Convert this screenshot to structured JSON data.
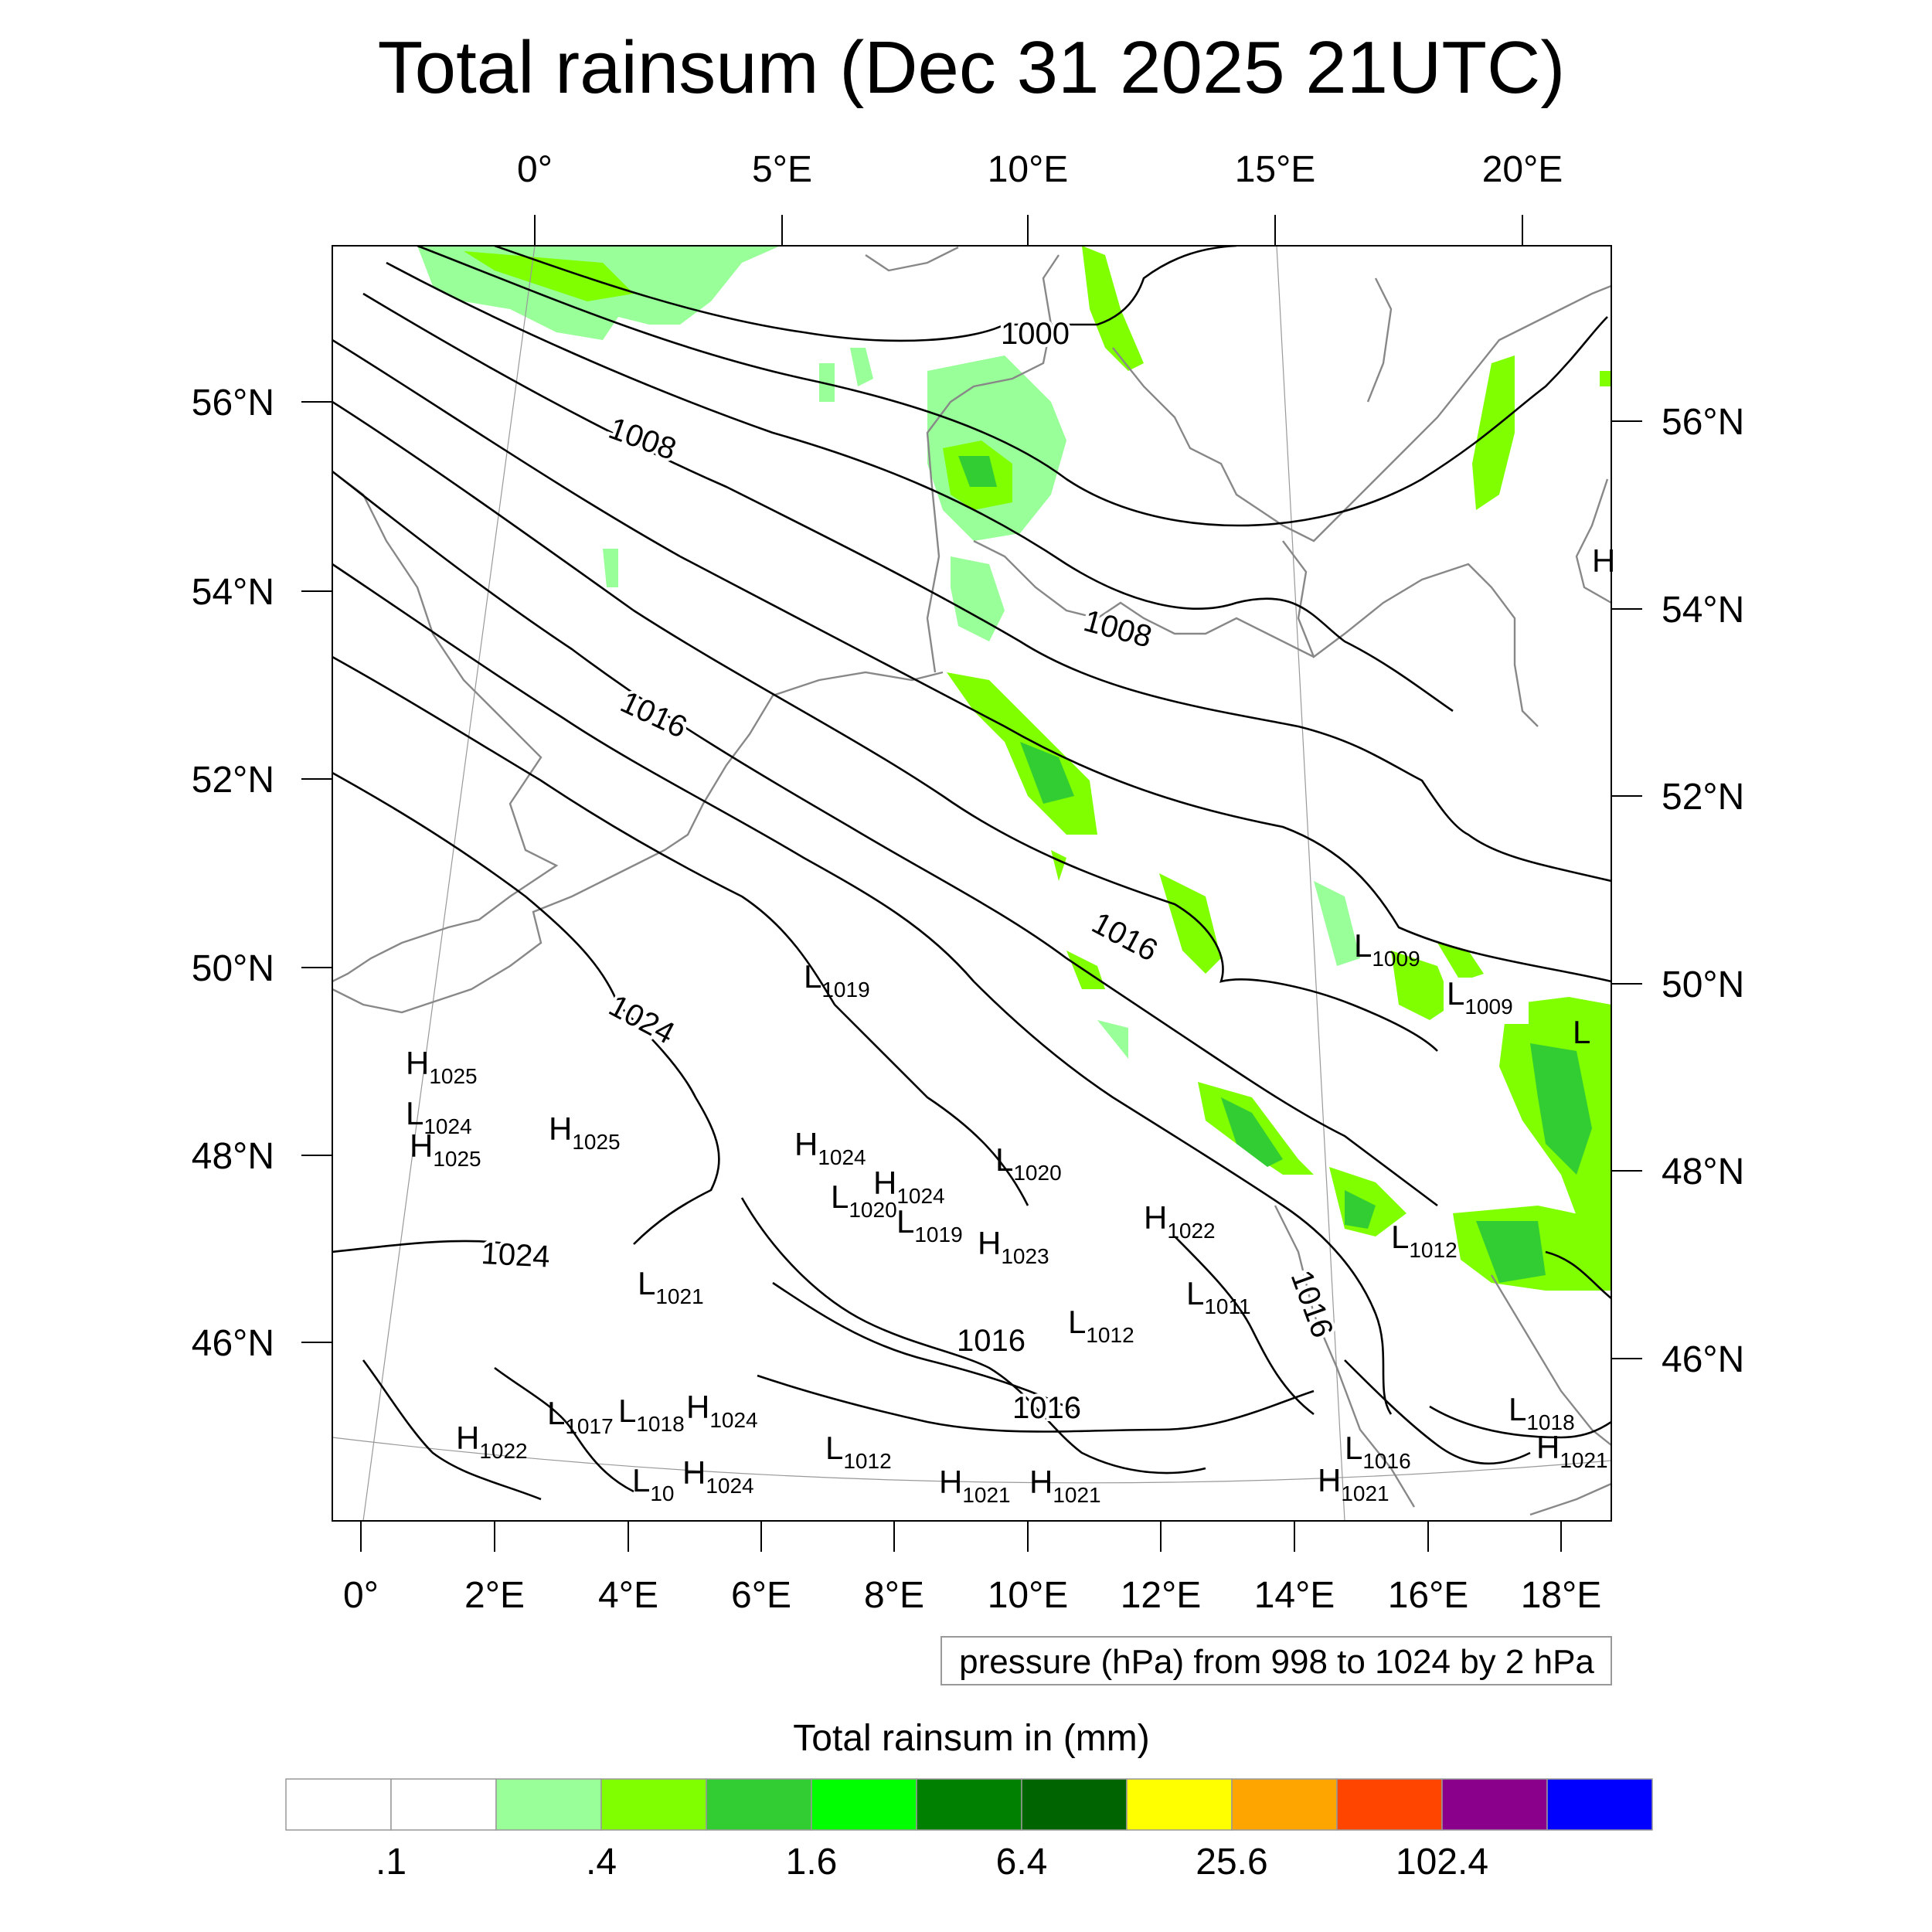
{
  "title": "Total rainsum (Dec 31 2025 21UTC)",
  "top_lon_ticks": [
    "0°",
    "5°E",
    "10°E",
    "15°E",
    "20°E"
  ],
  "bottom_lon_ticks": [
    "0°",
    "2°E",
    "4°E",
    "6°E",
    "8°E",
    "10°E",
    "12°E",
    "14°E",
    "16°E",
    "18°E"
  ],
  "left_lat_ticks": [
    "56°N",
    "54°N",
    "52°N",
    "50°N",
    "48°N",
    "46°N"
  ],
  "right_lat_ticks": [
    "56°N",
    "54°N",
    "52°N",
    "50°N",
    "48°N",
    "46°N"
  ],
  "contour_info": "pressure (hPa) from 998 to 1024 by 2 hPa",
  "colorbar": {
    "title": "Total rainsum in (mm)",
    "colors": [
      "#ffffff",
      "#ffffff",
      "#99ff99",
      "#80ff00",
      "#32cd32",
      "#00ff00",
      "#008000",
      "#006400",
      "#ffff00",
      "#ffa500",
      "#ff4500",
      "#8b008b",
      "#0000ff"
    ],
    "labels": [
      ".1",
      ".4",
      "1.6",
      "6.4",
      "25.6",
      "102.4"
    ]
  },
  "isobar_labels": [
    {
      "text": "1000"
    },
    {
      "text": "1008"
    },
    {
      "text": "1008"
    },
    {
      "text": "1016"
    },
    {
      "text": "1016"
    },
    {
      "text": "1024"
    },
    {
      "text": "1024"
    },
    {
      "text": "1016"
    },
    {
      "text": "1016"
    },
    {
      "text": "1016"
    }
  ],
  "pressure_centers": [
    {
      "type": "H",
      "value": "1025"
    },
    {
      "type": "L",
      "value": "1024"
    },
    {
      "type": "H",
      "value": "1025"
    },
    {
      "type": "H",
      "value": "1025"
    },
    {
      "type": "L",
      "value": "1019"
    },
    {
      "type": "H",
      "value": "1024"
    },
    {
      "type": "H",
      "value": "1024"
    },
    {
      "type": "L",
      "value": "1020"
    },
    {
      "type": "L",
      "value": "1020"
    },
    {
      "type": "L",
      "value": "1019"
    },
    {
      "type": "H",
      "value": "1023"
    },
    {
      "type": "H",
      "value": "1022"
    },
    {
      "type": "L",
      "value": "1011"
    },
    {
      "type": "L",
      "value": "1012"
    },
    {
      "type": "L",
      "value": "1012"
    },
    {
      "type": "L",
      "value": "1021"
    },
    {
      "type": "L",
      "value": "1017"
    },
    {
      "type": "L",
      "value": "1018"
    },
    {
      "type": "H",
      "value": "1024"
    },
    {
      "type": "H",
      "value": "1022"
    },
    {
      "type": "L",
      "value": "10"
    },
    {
      "type": "H",
      "value": "1024"
    },
    {
      "type": "L",
      "value": "1012"
    },
    {
      "type": "H",
      "value": "1021"
    },
    {
      "type": "H",
      "value": "1021"
    },
    {
      "type": "L",
      "value": "1016"
    },
    {
      "type": "H",
      "value": "1021"
    },
    {
      "type": "L",
      "value": "1018"
    },
    {
      "type": "H",
      "value": "1021"
    },
    {
      "type": "L",
      "value": "1009"
    },
    {
      "type": "L",
      "value": "1009"
    },
    {
      "type": "L",
      "value": ""
    },
    {
      "type": "H",
      "value": ""
    }
  ]
}
